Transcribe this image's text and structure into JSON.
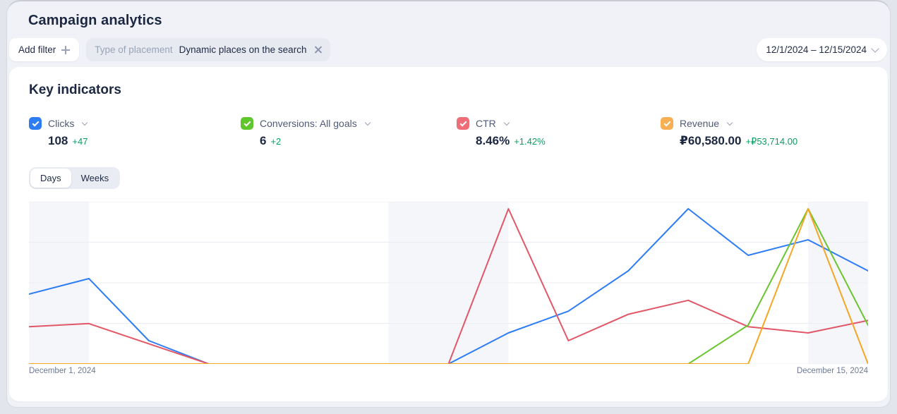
{
  "page": {
    "title": "Campaign analytics"
  },
  "filters": {
    "add_filter_label": "Add filter",
    "chip": {
      "field": "Type of placement",
      "value": "Dynamic places on the search"
    },
    "date_range": "12/1/2024 – 12/15/2024"
  },
  "key_indicators": {
    "title": "Key indicators",
    "metrics": [
      {
        "id": "clicks",
        "label": "Clicks",
        "value": "108",
        "delta": "+47",
        "color": "#2e7cf2"
      },
      {
        "id": "conversions",
        "label": "Conversions: All goals",
        "value": "6",
        "delta": "+2",
        "color": "#5fc62c"
      },
      {
        "id": "ctr",
        "label": "CTR",
        "value": "8.46%",
        "delta": "+1.42%",
        "color": "#ee6e78"
      },
      {
        "id": "revenue",
        "label": "Revenue",
        "value": "₽60,580.00",
        "delta": "+₽53,714.00",
        "color": "#f6b053"
      }
    ],
    "granularity": {
      "options": [
        "Days",
        "Weeks"
      ],
      "selected": "Days"
    }
  },
  "chart_data": {
    "type": "line",
    "title": "Key indicators daily trend",
    "x": [
      "Dec 1",
      "Dec 2",
      "Dec 3",
      "Dec 4",
      "Dec 5",
      "Dec 6",
      "Dec 7",
      "Dec 8",
      "Dec 9",
      "Dec 10",
      "Dec 11",
      "Dec 12",
      "Dec 13",
      "Dec 14",
      "Dec 15"
    ],
    "x_labels_visible": [
      "December 1, 2024",
      "December 15, 2024"
    ],
    "ylabel": "",
    "y_axis_shown": false,
    "normalization": "each series scaled to its own max (percent of series max)",
    "series": [
      {
        "name": "Clicks",
        "color": "#2e7cf6",
        "values_pct_of_max": [
          45,
          55,
          15,
          0,
          0,
          0,
          0,
          0,
          20,
          34,
          60,
          100,
          70,
          80,
          60
        ]
      },
      {
        "name": "CTR",
        "color": "#e25767",
        "values_pct_of_max": [
          24,
          26,
          13,
          0,
          0,
          0,
          0,
          0,
          100,
          15,
          32,
          41,
          24,
          20,
          28
        ]
      },
      {
        "name": "Conversions: All goals",
        "color": "#6ac52f",
        "values_pct_of_max": [
          0,
          0,
          0,
          0,
          0,
          0,
          0,
          0,
          0,
          0,
          0,
          0,
          25,
          100,
          25
        ]
      },
      {
        "name": "Revenue",
        "color": "#f5a623",
        "values_pct_of_max": [
          0,
          0,
          0,
          0,
          0,
          0,
          0,
          0,
          0,
          0,
          0,
          0,
          0,
          100,
          0
        ]
      }
    ],
    "weekend_band_indices": [
      [
        0,
        1
      ],
      [
        6,
        8
      ],
      [
        13,
        14
      ]
    ],
    "band_color": "#f4f6fa",
    "grid_color": "#ecedf3",
    "grid_rows": 4,
    "legend_position": "none (legend is the metric header row)"
  }
}
